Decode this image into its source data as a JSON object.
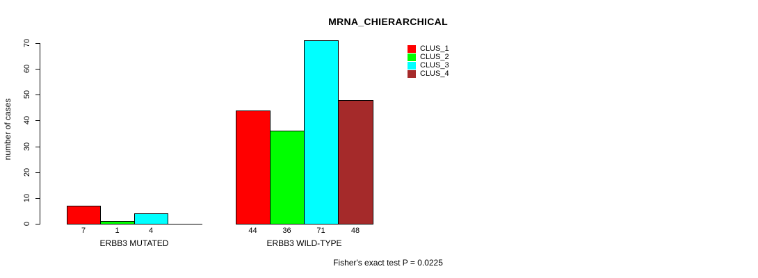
{
  "chart_data": {
    "type": "bar",
    "title": "MRNA_CHIERARCHICAL",
    "ylabel": "number of cases",
    "xlabel": "",
    "ylim": [
      0,
      70
    ],
    "yticks": [
      "0",
      "10",
      "20",
      "30",
      "40",
      "50",
      "60",
      "70"
    ],
    "grid": false,
    "legend_position": "top-right",
    "series": [
      {
        "name": "CLUS_1",
        "color": "#ff0000"
      },
      {
        "name": "CLUS_2",
        "color": "#00ff00"
      },
      {
        "name": "CLUS_3",
        "color": "#00ffff"
      },
      {
        "name": "CLUS_4",
        "color": "#a52a2a"
      }
    ],
    "groups": [
      {
        "label": "ERBB3 MUTATED",
        "values": [
          7,
          1,
          4,
          0
        ],
        "value_labels": [
          "7",
          "1",
          "4",
          ""
        ]
      },
      {
        "label": "ERBB3 WILD-TYPE",
        "values": [
          44,
          36,
          71,
          48
        ],
        "value_labels": [
          "44",
          "36",
          "71",
          "48"
        ]
      }
    ],
    "annotation": "Fisher's exact test P = 0.0225",
    "axis_color": "#000000",
    "background_color": "#ffffff"
  }
}
